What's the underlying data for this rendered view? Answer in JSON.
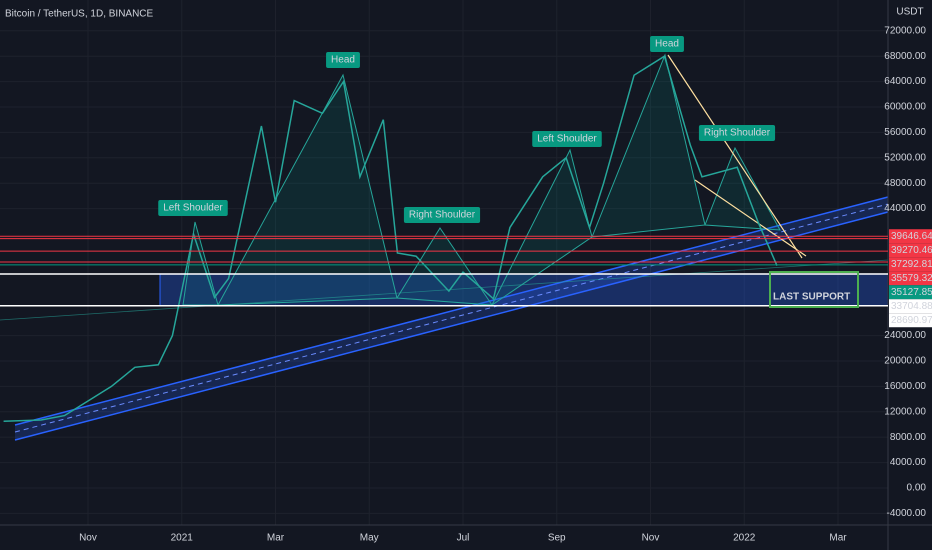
{
  "chart_data": {
    "type": "line",
    "title": "Bitcoin / TetherUS, 1D, BINANCE",
    "y_label": "USDT",
    "x": [
      8.2,
      9,
      9.5,
      10,
      10.5,
      11,
      11.5,
      11.8,
      12.25,
      12.7,
      13,
      13.7,
      14,
      14.4,
      15,
      15.45,
      15.8,
      16.3,
      16.6,
      17,
      17.7,
      18,
      18.65,
      19,
      19.7,
      20.2,
      20.7,
      21,
      21.65,
      22.3,
      22.85,
      23.1,
      23.85,
      24.3,
      24.7
    ],
    "series": [
      {
        "color": "#26a69a",
        "values": [
          10500,
          10700,
          11400,
          13700,
          16000,
          19000,
          19400,
          24000,
          40000,
          30000,
          33000,
          57000,
          45000,
          61000,
          59000,
          64000,
          49000,
          58000,
          37000,
          36500,
          31000,
          34000,
          29800,
          41000,
          49000,
          52000,
          41000,
          48000,
          65000,
          68000,
          54000,
          49000,
          50500,
          41800,
          35000
        ]
      }
    ],
    "xlim": [
      8.123,
      27.067
    ],
    "xticks": [
      {
        "value": 10,
        "label": "Nov"
      },
      {
        "value": 12,
        "label": "2021"
      },
      {
        "value": 14,
        "label": "Mar"
      },
      {
        "value": 16,
        "label": "May"
      },
      {
        "value": 18,
        "label": "Jul"
      },
      {
        "value": 20,
        "label": "Sep"
      },
      {
        "value": 22,
        "label": "Nov"
      },
      {
        "value": 24,
        "label": "2022"
      },
      {
        "value": 26,
        "label": "Mar"
      }
    ],
    "ylim": [
      -5830,
      76850
    ],
    "yticks": [
      {
        "value": -4000,
        "label": "-4000.00"
      },
      {
        "value": 0,
        "label": "0.00"
      },
      {
        "value": 4000,
        "label": "4000.00"
      },
      {
        "value": 8000,
        "label": "8000.00"
      },
      {
        "value": 12000,
        "label": "12000.00"
      },
      {
        "value": 16000,
        "label": "16000.00"
      },
      {
        "value": 20000,
        "label": "20000.00"
      },
      {
        "value": 24000,
        "label": "24000.00"
      },
      {
        "value": 44000,
        "label": "44000.00"
      },
      {
        "value": 48000,
        "label": "48000.00"
      },
      {
        "value": 52000,
        "label": "52000.00"
      },
      {
        "value": 56000,
        "label": "56000.00"
      },
      {
        "value": 60000,
        "label": "60000.00"
      },
      {
        "value": 64000,
        "label": "64000.00"
      },
      {
        "value": 68000,
        "label": "68000.00"
      },
      {
        "value": 72000,
        "label": "72000.00"
      }
    ],
    "levels": [
      {
        "value": 39646.64,
        "color": "#f23645"
      },
      {
        "value": 39270.46,
        "color": "#f23645"
      },
      {
        "value": 37292.81,
        "color": "#f23645"
      },
      {
        "value": 35579.32,
        "color": "#f23645"
      },
      {
        "value": 35127.85,
        "color": "#089981"
      },
      {
        "value": 33704.88,
        "color": "#ffffff"
      },
      {
        "value": 28690.97,
        "color": "#ffffff"
      }
    ],
    "annotations": [
      "Left Shoulder",
      "Head",
      "Right Shoulder",
      "Left Shoulder",
      "Head",
      "Right Shoulder",
      "LAST SUPPORT"
    ],
    "grid": true
  }
}
